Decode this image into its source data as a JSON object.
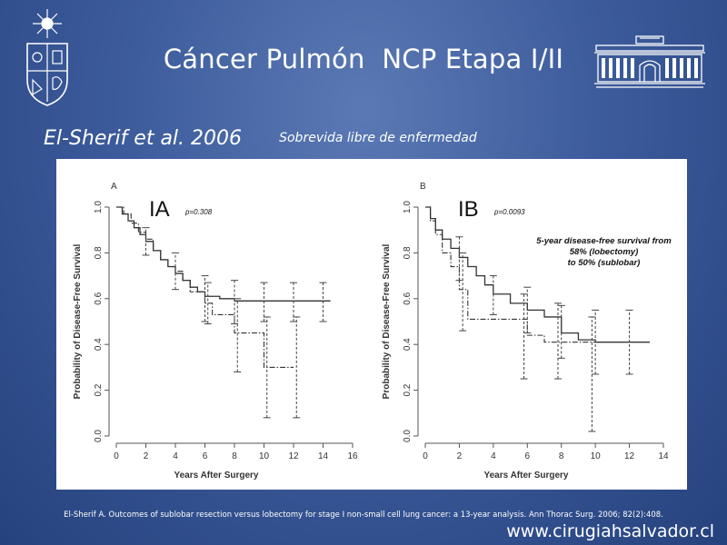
{
  "slide": {
    "title": "Cáncer Pulmón  NCP Etapa I/II",
    "author": "El-Sherif et al. 2006",
    "topic": "Sobrevida libre de enfermedad",
    "citation": "El-Sherif A. Outcomes of sublobar resection versus lobectomy for stage I non-small cell lung cancer: a 13-year analysis. Ann Thorac Surg. 2006; 82(2):408.",
    "website": "www.cirugiahsalvador.cl",
    "colors": {
      "background": "#3d5c9c",
      "text": "#ffffff",
      "figure_bg": "#ffffff"
    },
    "icons": [
      "university-crest-icon",
      "hospital-building-icon"
    ]
  },
  "chart_data": [
    {
      "type": "line",
      "panel_label": "A",
      "stage_label": "IA",
      "p_value": "p=0.308",
      "xlabel": "Years After Surgery",
      "ylabel": "Probability of Disease-Free Survival",
      "xlim": [
        0,
        16
      ],
      "ylim": [
        0,
        1
      ],
      "x_ticks": [
        "0",
        "2",
        "4",
        "6",
        "8",
        "10",
        "12",
        "14",
        "16"
      ],
      "y_ticks": [
        "0.0",
        "0.2",
        "0.4",
        "0.6",
        "0.8",
        "1.0"
      ],
      "series": [
        {
          "style": "solid",
          "x": [
            0,
            0.4,
            0.8,
            1.2,
            1.6,
            2.0,
            2.5,
            3.0,
            3.5,
            4.0,
            4.5,
            5.0,
            5.5,
            6.0,
            7.0,
            8.0,
            10.0,
            12.0,
            14.5
          ],
          "y": [
            1.0,
            0.97,
            0.94,
            0.91,
            0.88,
            0.85,
            0.81,
            0.77,
            0.74,
            0.71,
            0.68,
            0.65,
            0.63,
            0.61,
            0.6,
            0.59,
            0.59,
            0.59,
            0.59
          ]
        },
        {
          "style": "dash-dot",
          "x": [
            0,
            0.5,
            1.0,
            1.5,
            2.0,
            2.5,
            3.0,
            3.5,
            4.0,
            4.5,
            5.0,
            6.0,
            6.5,
            7.5,
            8.0,
            9.0,
            10.0,
            11.0,
            12.0
          ],
          "y": [
            1.0,
            0.97,
            0.93,
            0.89,
            0.86,
            0.81,
            0.77,
            0.74,
            0.72,
            0.68,
            0.63,
            0.58,
            0.53,
            0.53,
            0.45,
            0.45,
            0.3,
            0.3,
            0.3
          ]
        }
      ],
      "error_bars": [
        {
          "x": 2,
          "y": 0.85,
          "low": 0.79,
          "high": 0.91
        },
        {
          "x": 4,
          "y": 0.72,
          "low": 0.64,
          "high": 0.8
        },
        {
          "x": 6,
          "y": 0.6,
          "low": 0.5,
          "high": 0.7
        },
        {
          "x": 8,
          "y": 0.59,
          "low": 0.49,
          "high": 0.68
        },
        {
          "x": 10,
          "y": 0.59,
          "low": 0.5,
          "high": 0.67
        },
        {
          "x": 12,
          "y": 0.59,
          "low": 0.5,
          "high": 0.67
        },
        {
          "x": 14,
          "y": 0.59,
          "low": 0.5,
          "high": 0.67
        },
        {
          "x": 6.2,
          "y": 0.58,
          "low": 0.49,
          "high": 0.67
        },
        {
          "x": 8.2,
          "y": 0.45,
          "low": 0.28,
          "high": 0.6
        },
        {
          "x": 10.2,
          "y": 0.3,
          "low": 0.08,
          "high": 0.52
        },
        {
          "x": 12.2,
          "y": 0.3,
          "low": 0.08,
          "high": 0.52
        }
      ]
    },
    {
      "type": "line",
      "panel_label": "B",
      "stage_label": "IB",
      "p_value": "p=0.0093",
      "annotation": [
        "5-year disease-free survival from",
        "58% (lobectomy)",
        "to 50% (sublobar)"
      ],
      "xlabel": "Years After Surgery",
      "ylabel": "Probability of Disease-Free Survival",
      "xlim": [
        0,
        14
      ],
      "ylim": [
        0,
        1
      ],
      "x_ticks": [
        "0",
        "2",
        "4",
        "6",
        "8",
        "10",
        "12",
        "14"
      ],
      "y_ticks": [
        "0.0",
        "0.2",
        "0.4",
        "0.6",
        "0.8",
        "1.0"
      ],
      "series": [
        {
          "style": "solid",
          "x": [
            0,
            0.3,
            0.6,
            1.0,
            1.5,
            2.0,
            2.5,
            3.0,
            3.5,
            4.0,
            5.0,
            6.0,
            7.0,
            8.0,
            9.0,
            10.0,
            12.0,
            13.2
          ],
          "y": [
            1.0,
            0.95,
            0.9,
            0.86,
            0.82,
            0.78,
            0.74,
            0.7,
            0.66,
            0.62,
            0.58,
            0.55,
            0.52,
            0.45,
            0.42,
            0.41,
            0.41,
            0.41
          ]
        },
        {
          "style": "dash-dot",
          "x": [
            0,
            0.3,
            0.6,
            1.0,
            1.5,
            2.0,
            2.5,
            3.5,
            5.0,
            6.0,
            7.0,
            8.0,
            9.0,
            10.0
          ],
          "y": [
            1.0,
            0.94,
            0.88,
            0.8,
            0.74,
            0.64,
            0.51,
            0.51,
            0.51,
            0.44,
            0.41,
            0.41,
            0.41,
            0.41
          ]
        }
      ],
      "error_bars": [
        {
          "x": 2,
          "y": 0.78,
          "low": 0.68,
          "high": 0.87
        },
        {
          "x": 4,
          "y": 0.62,
          "low": 0.53,
          "high": 0.7
        },
        {
          "x": 6,
          "y": 0.55,
          "low": 0.45,
          "high": 0.65
        },
        {
          "x": 8,
          "y": 0.45,
          "low": 0.34,
          "high": 0.57
        },
        {
          "x": 10,
          "y": 0.41,
          "low": 0.27,
          "high": 0.55
        },
        {
          "x": 12,
          "y": 0.41,
          "low": 0.27,
          "high": 0.55
        },
        {
          "x": 2.2,
          "y": 0.64,
          "low": 0.46,
          "high": 0.8
        },
        {
          "x": 5.8,
          "y": 0.44,
          "low": 0.25,
          "high": 0.62
        },
        {
          "x": 7.8,
          "y": 0.41,
          "low": 0.25,
          "high": 0.58
        },
        {
          "x": 9.8,
          "y": 0.41,
          "low": 0.02,
          "high": 0.52
        }
      ]
    }
  ]
}
